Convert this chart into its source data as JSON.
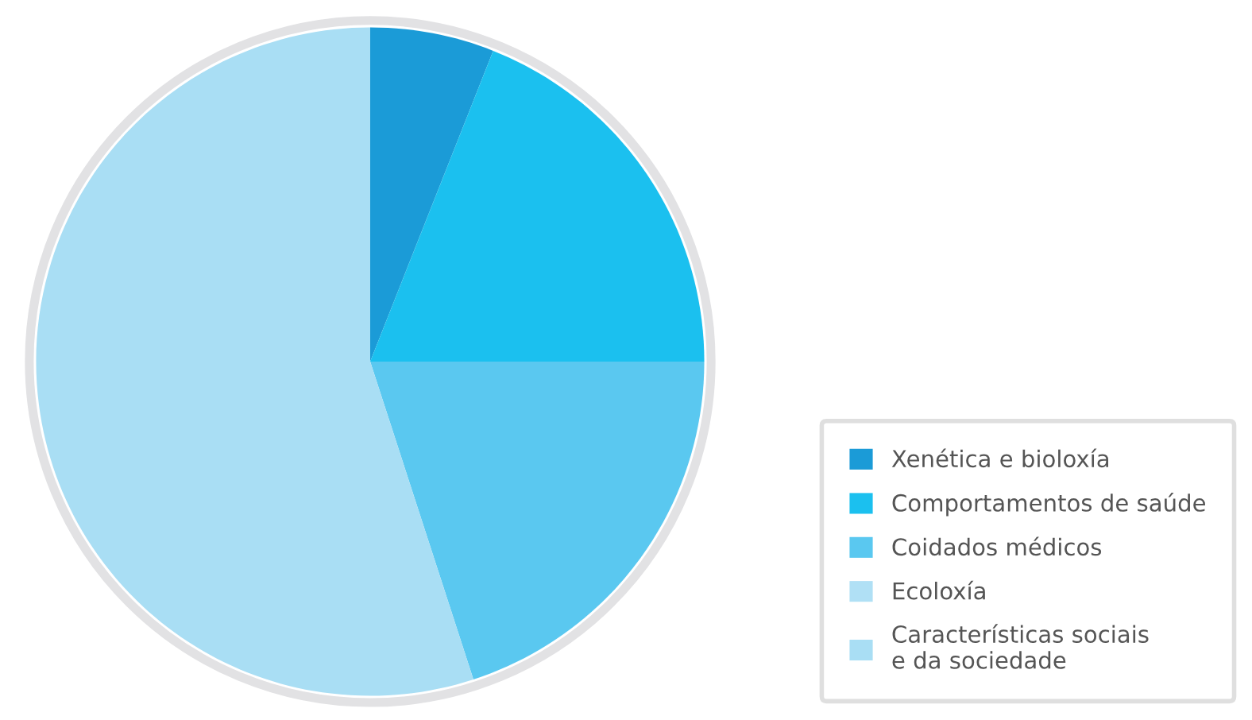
{
  "chart_data": {
    "type": "pie",
    "categories": [
      "Xenética e bioloxía",
      "Comportamentos de saúde",
      "Coidados médicos",
      "Ecoloxía",
      "Características sociais\ne da sociedade"
    ],
    "values": [
      6,
      19,
      20,
      null,
      55
    ],
    "colors": [
      "#1b9bd7",
      "#1bc0ef",
      "#5ac8f0",
      "#b0e0f5",
      "#a9def4"
    ],
    "legend": "bottom right"
  }
}
